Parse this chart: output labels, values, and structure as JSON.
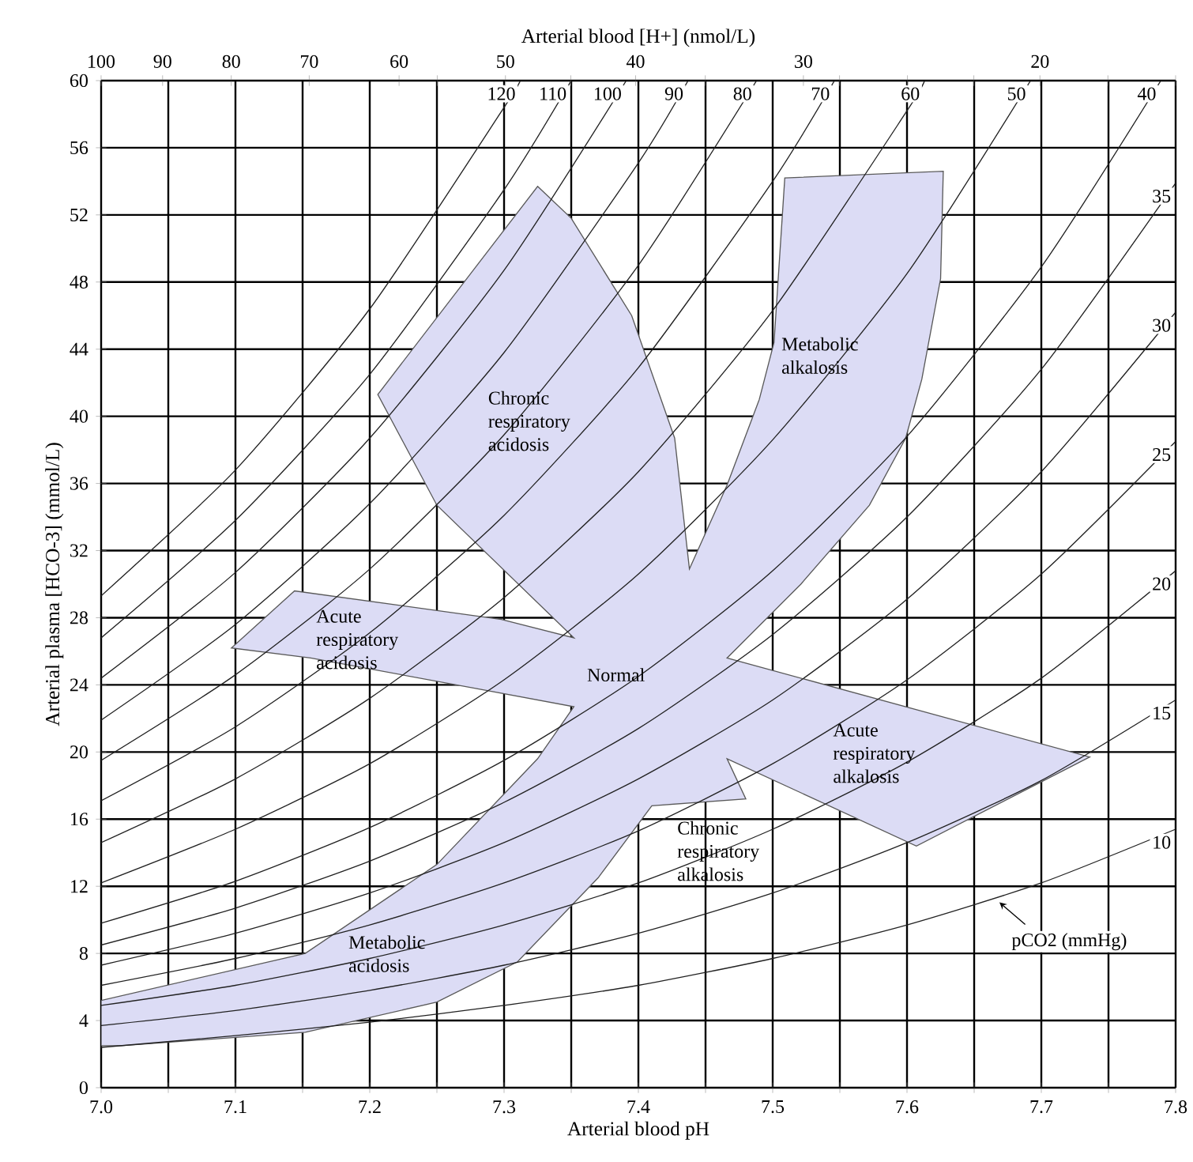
{
  "chart_data": {
    "type": "line",
    "xlabel": "Arterial blood pH",
    "ylabel": "Arterial plasma [HCO-3] (mmol/L)",
    "x2label": "Arterial blood [H+] (nmol/L)",
    "xlim": [
      7.0,
      7.8
    ],
    "ylim": [
      0,
      60
    ],
    "x2lim": [
      100,
      15.85
    ],
    "log": "x2",
    "xticks": [
      {
        "value": 7.0,
        "label": "7.0"
      },
      {
        "value": 7.05,
        "label": null
      },
      {
        "value": 7.1,
        "label": "7.1"
      },
      {
        "value": 7.15,
        "label": null
      },
      {
        "value": 7.2,
        "label": "7.2"
      },
      {
        "value": 7.25,
        "label": null
      },
      {
        "value": 7.3,
        "label": "7.3"
      },
      {
        "value": 7.35,
        "label": null
      },
      {
        "value": 7.4,
        "label": "7.4"
      },
      {
        "value": 7.45,
        "label": null
      },
      {
        "value": 7.5,
        "label": "7.5"
      },
      {
        "value": 7.55,
        "label": null
      },
      {
        "value": 7.6,
        "label": "7.6"
      },
      {
        "value": 7.65,
        "label": null
      },
      {
        "value": 7.7,
        "label": "7.7"
      },
      {
        "value": 7.75,
        "label": null
      },
      {
        "value": 7.8,
        "label": "7.8"
      }
    ],
    "x2ticks": [
      100,
      90,
      80,
      70,
      60,
      {
        "value": 56.2,
        "label": null
      },
      50,
      {
        "value": 44.7,
        "label": null
      },
      40,
      {
        "value": 35.5,
        "label": null
      },
      30,
      {
        "value": 28.2,
        "label": null
      },
      {
        "value": 25.1,
        "label": null
      },
      {
        "value": 22.4,
        "label": null
      },
      20,
      {
        "value": 17.8,
        "label": null
      },
      {
        "value": 15.85,
        "label": null
      }
    ],
    "yticks": [
      0,
      4,
      8,
      12,
      16,
      20,
      24,
      28,
      32,
      36,
      40,
      44,
      48,
      52,
      56,
      60
    ],
    "grid": true,
    "series": [
      {
        "type": "area",
        "color": "#dcdcf5",
        "x": [
          7.325,
          7.35,
          7.395,
          7.427,
          7.438,
          7.466,
          7.49,
          7.501,
          7.509,
          7.627,
          7.625,
          7.611,
          7.599,
          7.572,
          7.521,
          7.466,
          7.736,
          7.607,
          7.466,
          7.48,
          7.41,
          7.37,
          7.31,
          7.25,
          7.152,
          7.015,
          7.0,
          7.0,
          7.152,
          7.25,
          7.325,
          7.352,
          7.278,
          7.156,
          7.097,
          7.144,
          7.298,
          7.352,
          7.25,
          7.206
        ],
        "values": [
          53.7,
          51.8,
          46.0,
          38.7,
          30.9,
          35.9,
          41.0,
          44.4,
          54.2,
          54.6,
          48.2,
          42.2,
          38.7,
          34.7,
          30.0,
          25.6,
          19.7,
          14.4,
          19.6,
          17.2,
          16.8,
          12.5,
          7.5,
          5.1,
          3.3,
          2.5,
          2.5,
          5.2,
          8.0,
          13.3,
          19.6,
          22.7,
          23.8,
          25.6,
          26.2,
          29.6,
          27.9,
          26.8,
          34.7,
          41.3
        ]
      },
      {
        "name": "120",
        "color": "#222222",
        "x": [
          7.0,
          7.1,
          7.2,
          7.3,
          7.312
        ],
        "values": [
          29.3,
          36.8,
          46.4,
          58.4,
          60
        ]
      },
      {
        "name": "110",
        "color": "#222222",
        "x": [
          7.0,
          7.1,
          7.2,
          7.3,
          7.35
        ],
        "values": [
          26.8,
          33.8,
          42.5,
          53.5,
          60
        ]
      },
      {
        "name": "100",
        "color": "#222222",
        "x": [
          7.0,
          7.1,
          7.2,
          7.3,
          7.391
        ],
        "values": [
          24.4,
          30.7,
          38.7,
          48.7,
          60
        ]
      },
      {
        "name": "90",
        "color": "#222222",
        "x": [
          7.0,
          7.1,
          7.2,
          7.3,
          7.4,
          7.437
        ],
        "values": [
          21.9,
          27.6,
          34.8,
          43.8,
          55.1,
          60
        ]
      },
      {
        "name": "80",
        "color": "#222222",
        "x": [
          7.0,
          7.1,
          7.2,
          7.3,
          7.4,
          7.488
        ],
        "values": [
          19.5,
          24.6,
          30.9,
          38.9,
          49.0,
          60
        ]
      },
      {
        "name": "70",
        "color": "#222222",
        "x": [
          7.0,
          7.1,
          7.2,
          7.3,
          7.4,
          7.5,
          7.546
        ],
        "values": [
          17.1,
          21.5,
          27.1,
          34.1,
          42.9,
          54.0,
          60
        ]
      },
      {
        "name": "60",
        "color": "#222222",
        "x": [
          7.0,
          7.1,
          7.2,
          7.3,
          7.4,
          7.5,
          7.6,
          7.613
        ],
        "values": [
          14.6,
          18.4,
          23.2,
          29.2,
          36.7,
          46.3,
          58.2,
          60
        ]
      },
      {
        "name": "50",
        "color": "#222222",
        "x": [
          7.0,
          7.1,
          7.2,
          7.3,
          7.4,
          7.5,
          7.6,
          7.692
        ],
        "values": [
          12.2,
          15.4,
          19.3,
          24.3,
          30.6,
          38.6,
          48.5,
          60
        ]
      },
      {
        "name": "40",
        "color": "#222222",
        "x": [
          7.0,
          7.1,
          7.2,
          7.3,
          7.4,
          7.5,
          7.6,
          7.7,
          7.789
        ],
        "values": [
          9.8,
          12.3,
          15.5,
          19.5,
          24.5,
          30.8,
          38.8,
          48.9,
          60
        ]
      },
      {
        "name": "35",
        "color": "#222222",
        "x": [
          7.0,
          7.1,
          7.2,
          7.3,
          7.4,
          7.5,
          7.6,
          7.7,
          7.8
        ],
        "values": [
          8.5,
          10.7,
          13.5,
          17.0,
          21.4,
          27.0,
          34.0,
          42.8,
          53.9
        ]
      },
      {
        "name": "30",
        "color": "#222222",
        "x": [
          7.0,
          7.1,
          7.2,
          7.3,
          7.4,
          7.5,
          7.6,
          7.7,
          7.8
        ],
        "values": [
          7.3,
          9.2,
          11.6,
          14.6,
          18.4,
          23.1,
          29.1,
          36.7,
          46.2
        ]
      },
      {
        "name": "25",
        "color": "#222222",
        "x": [
          7.0,
          7.1,
          7.2,
          7.3,
          7.4,
          7.5,
          7.6,
          7.7,
          7.8
        ],
        "values": [
          6.1,
          7.7,
          9.7,
          12.2,
          15.3,
          19.3,
          24.3,
          30.6,
          38.5
        ]
      },
      {
        "name": "20",
        "color": "#222222",
        "x": [
          7.0,
          7.1,
          7.2,
          7.3,
          7.4,
          7.5,
          7.6,
          7.7,
          7.8
        ],
        "values": [
          4.9,
          6.1,
          7.7,
          9.7,
          12.2,
          15.4,
          19.4,
          24.4,
          30.8
        ]
      },
      {
        "name": "15",
        "color": "#222222",
        "x": [
          7.0,
          7.1,
          7.2,
          7.3,
          7.4,
          7.5,
          7.6,
          7.7,
          7.8
        ],
        "values": [
          3.7,
          4.6,
          5.8,
          7.3,
          9.2,
          11.6,
          14.6,
          18.3,
          23.1
        ]
      },
      {
        "name": "10",
        "color": "#222222",
        "x": [
          7.0,
          7.1,
          7.2,
          7.3,
          7.4,
          7.5,
          7.6,
          7.7,
          7.8
        ],
        "values": [
          2.4,
          3.1,
          3.9,
          4.9,
          6.1,
          7.7,
          9.7,
          12.2,
          15.4
        ]
      }
    ],
    "annotations": [
      "Chronic respiratory acidosis",
      "Metabolic alkalosis",
      "Acute respiratory acidosis",
      "Normal",
      "Acute respiratory alkalosis",
      "Chronic respiratory alkalosis",
      "Metabolic acidosis",
      "pCO2 (mmHg)"
    ]
  }
}
